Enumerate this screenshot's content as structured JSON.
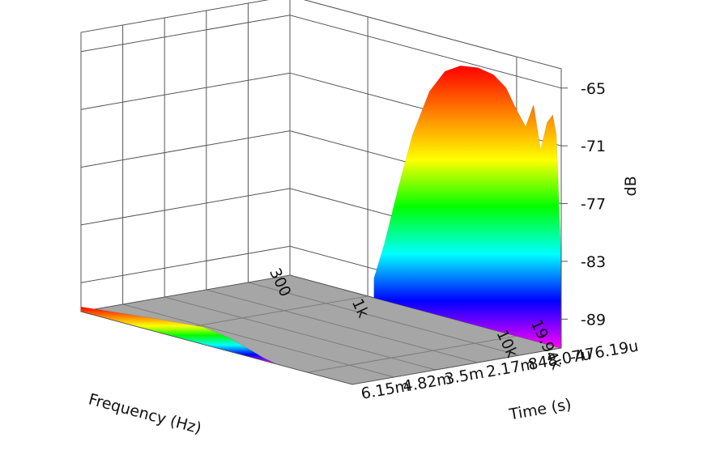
{
  "chart_data": {
    "type": "waterfall-3d",
    "title": "",
    "axes": {
      "frequency": {
        "label": "Frequency (Hz)",
        "scale": "log",
        "range": [
          300,
          19940
        ],
        "ticks": [
          "300",
          "1k",
          "10k",
          "19.94k"
        ]
      },
      "time": {
        "label": "Time (s)",
        "range": [
          -0.00047619,
          0.00615
        ],
        "ticks": [
          "-476.19u",
          "848.07u",
          "2.17m",
          "3.5m",
          "4.82m",
          "6.15m"
        ]
      },
      "level": {
        "label": "dB",
        "range": [
          -92,
          -63
        ],
        "ticks": [
          "-65",
          "-71",
          "-77",
          "-83",
          "-89"
        ]
      }
    },
    "colormap": [
      "#ff00ff",
      "#0000ff",
      "#00ffff",
      "#00ff00",
      "#ffff00",
      "#ff8000",
      "#ff0000"
    ],
    "floor_color": "#a6a6a6",
    "surfaces": [
      {
        "time_s": -0.00047619,
        "freq_hz": [
          1100,
          1300,
          1600,
          2000,
          2600,
          3300,
          4200,
          5500,
          7000,
          8500,
          10000,
          11500,
          13000,
          14500,
          16000,
          17500,
          18500,
          19940
        ],
        "level_db": [
          -90,
          -86,
          -80,
          -74,
          -69,
          -66.5,
          -65.5,
          -65.2,
          -65.5,
          -66.5,
          -68.5,
          -70,
          -67.5,
          -72,
          -69,
          -68,
          -70,
          -83
        ]
      },
      {
        "time_s": 0.00615,
        "freq_hz": [
          300,
          1000,
          2000,
          3000,
          4000,
          5000,
          6200
        ],
        "level_db": [
          -91.5,
          -90.6,
          -90.2,
          -90.6,
          -91.2,
          -91.7,
          -92
        ]
      }
    ]
  }
}
